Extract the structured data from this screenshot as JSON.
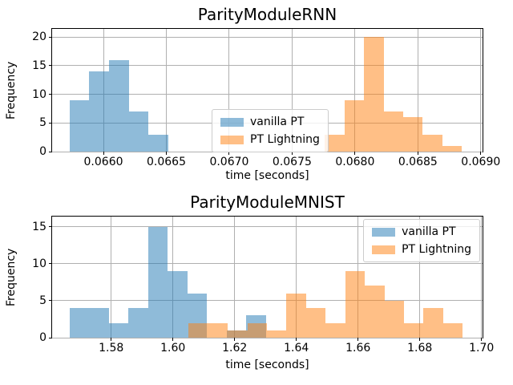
{
  "figure": {
    "background": "#ffffff",
    "grid_color": "#b0b0b0",
    "spine_color": "#000000",
    "bar_alpha": 0.5,
    "legend": {
      "items": [
        {
          "label": "vanilla PT",
          "series": "vanilla",
          "color": "#1f77b4"
        },
        {
          "label": "PT Lightning",
          "series": "lightning",
          "color": "#ff7f0e"
        }
      ]
    }
  },
  "chart_data": [
    {
      "type": "bar",
      "subtype": "histogram",
      "title": "ParityModuleRNN",
      "xlabel": "time [seconds]",
      "ylabel": "Frequency",
      "xlim": [
        0.065592,
        0.069014
      ],
      "ylim": [
        0,
        21.4
      ],
      "grid": true,
      "legend_position": "center",
      "xticks": [
        0.066,
        0.0665,
        0.067,
        0.0675,
        0.068,
        0.0685,
        0.069
      ],
      "xtick_labels": [
        "0.0660",
        "0.0665",
        "0.0670",
        "0.0675",
        "0.0680",
        "0.0685",
        "0.0690"
      ],
      "yticks": [
        0,
        5,
        10,
        15,
        20
      ],
      "ytick_labels": [
        "0",
        "5",
        "10",
        "15",
        "20"
      ],
      "series": [
        {
          "name": "vanilla PT",
          "color": "#1f77b4",
          "bin_start": 0.06573,
          "bin_width": 0.000157,
          "counts": [
            9,
            14,
            16,
            7,
            3
          ]
        },
        {
          "name": "PT Lightning",
          "color": "#ff7f0e",
          "bin_start": 0.06776,
          "bin_width": 0.0001557,
          "counts": [
            3,
            9,
            20,
            7,
            6,
            3,
            1
          ]
        }
      ]
    },
    {
      "type": "bar",
      "subtype": "histogram",
      "title": "ParityModuleMNIST",
      "xlabel": "time [seconds]",
      "ylabel": "Frequency",
      "xlim": [
        1.56085,
        1.70034
      ],
      "ylim": [
        0,
        16.36
      ],
      "grid": true,
      "legend_position": "upper right",
      "xticks": [
        1.58,
        1.6,
        1.62,
        1.64,
        1.66,
        1.68,
        1.7
      ],
      "xtick_labels": [
        "1.58",
        "1.60",
        "1.62",
        "1.64",
        "1.66",
        "1.68",
        "1.70"
      ],
      "yticks": [
        0,
        5,
        10,
        15
      ],
      "ytick_labels": [
        "0",
        "5",
        "10",
        "15"
      ],
      "series": [
        {
          "name": "vanilla PT",
          "color": "#1f77b4",
          "bin_start": 1.5665,
          "bin_width": 0.00636,
          "counts": [
            4,
            4,
            2,
            4,
            15,
            9,
            6,
            0,
            1,
            3
          ]
        },
        {
          "name": "PT Lightning",
          "color": "#ff7f0e",
          "bin_start": 1.6051,
          "bin_width": 0.006343,
          "counts": [
            2,
            2,
            1,
            2,
            1,
            6,
            4,
            2,
            9,
            7,
            5,
            2,
            4,
            2
          ]
        }
      ]
    }
  ]
}
